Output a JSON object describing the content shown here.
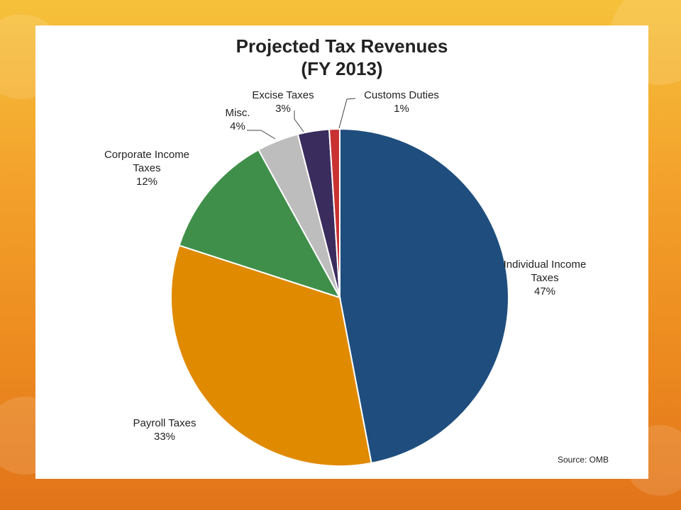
{
  "chart_data": {
    "type": "pie",
    "title": "Projected Tax Revenues",
    "subtitle": "(FY 2013)",
    "slices": [
      {
        "name": "Individual Income Taxes",
        "label_lines": [
          "Individual  Income",
          "Taxes"
        ],
        "value": 47,
        "label": "47%",
        "color": "#1f4e7e"
      },
      {
        "name": "Payroll Taxes",
        "label_lines": [
          "Payroll Taxes"
        ],
        "value": 33,
        "label": "33%",
        "color": "#e08a00"
      },
      {
        "name": "Corporate Income Taxes",
        "label_lines": [
          "Corporate  Income",
          "Taxes"
        ],
        "value": 12,
        "label": "12%",
        "color": "#3f8f4a"
      },
      {
        "name": "Misc.",
        "label_lines": [
          "Misc."
        ],
        "value": 4,
        "label": "4%",
        "color": "#bdbdbd"
      },
      {
        "name": "Excise Taxes",
        "label_lines": [
          "Excise Taxes"
        ],
        "value": 3,
        "label": "3%",
        "color": "#3b2c5e"
      },
      {
        "name": "Customs Duties",
        "label_lines": [
          "Customs Duties"
        ],
        "value": 1,
        "label": "1%",
        "color": "#c83232"
      }
    ],
    "source": "Source: OMB"
  }
}
